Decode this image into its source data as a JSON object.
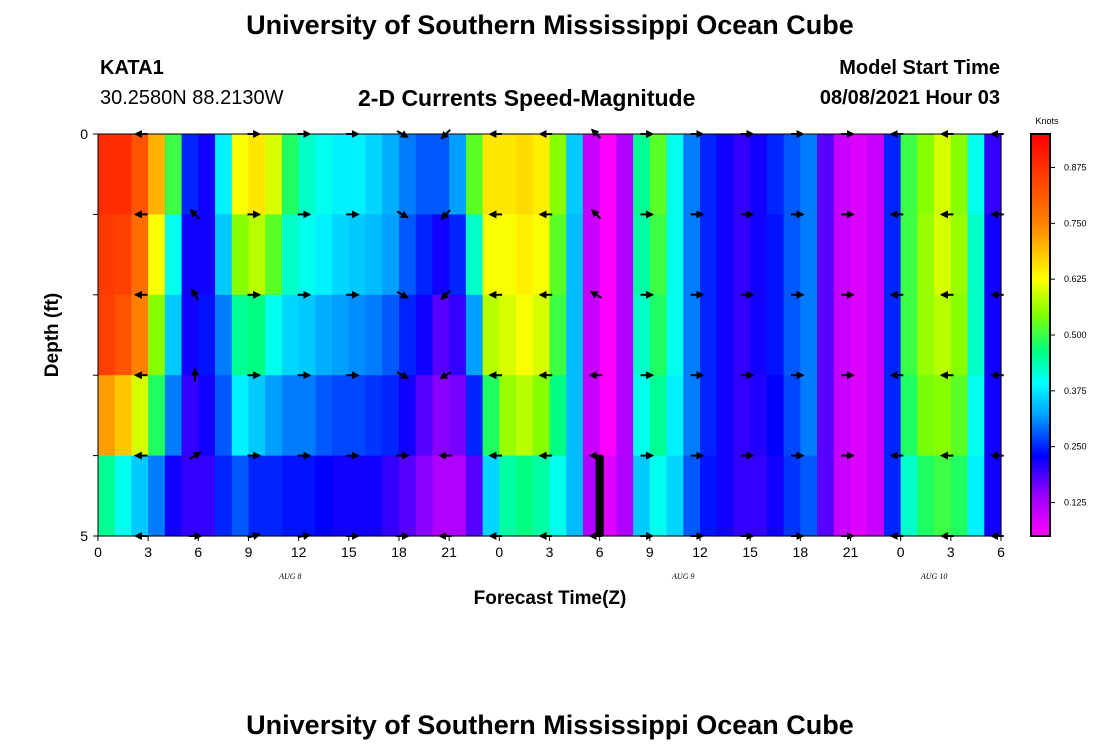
{
  "header": {
    "title_top": "University of Southern Mississippi Ocean Cube",
    "station": "KATA1",
    "coords": "30.2580N  88.2130W",
    "subtitle": "2-D Currents Speed-Magnitude",
    "model_label": "Model Start Time",
    "model_time": "08/08/2021 Hour 03"
  },
  "footer": {
    "title_bottom": "University of Southern Mississippi Ocean Cube"
  },
  "chart_data": {
    "type": "heatmap",
    "xlabel": "Forecast Time(Z)",
    "ylabel": "Depth (ft)",
    "x_tick_labels": [
      "0",
      "3",
      "6",
      "9",
      "12",
      "15",
      "18",
      "21",
      "0",
      "3",
      "6",
      "9",
      "12",
      "15",
      "18",
      "21",
      "0",
      "3",
      "6"
    ],
    "date_labels": [
      {
        "text": "AUG  8",
        "hour": 11.5
      },
      {
        "text": "AUG  9",
        "hour": 35
      },
      {
        "text": "AUG  10",
        "hour": 50
      }
    ],
    "y_tick_labels": [
      "0",
      "5"
    ],
    "ylim": [
      0,
      5
    ],
    "x_hours": [
      0,
      54
    ],
    "depth_levels": [
      0.5,
      1.5,
      2.5,
      3.5,
      4.5
    ],
    "colorbar": {
      "title": "Knots",
      "ticks": [
        "0.875",
        "0.750",
        "0.625",
        "0.500",
        "0.375",
        "0.250",
        "0.125"
      ],
      "range": [
        0.05,
        0.95
      ]
    },
    "current_marker_hour": 30,
    "columns": [
      {
        "h": 0,
        "v": [
          0.88,
          0.86,
          0.85,
          0.72,
          0.45
        ]
      },
      {
        "h": 1,
        "v": [
          0.88,
          0.85,
          0.82,
          0.68,
          0.4
        ]
      },
      {
        "h": 2,
        "v": [
          0.82,
          0.78,
          0.75,
          0.6,
          0.35
        ]
      },
      {
        "h": 3,
        "v": [
          0.7,
          0.62,
          0.55,
          0.48,
          0.3
        ]
      },
      {
        "h": 4,
        "v": [
          0.5,
          0.4,
          0.35,
          0.3,
          0.22
        ]
      },
      {
        "h": 5,
        "v": [
          0.25,
          0.22,
          0.22,
          0.2,
          0.2
        ]
      },
      {
        "h": 6,
        "v": [
          0.22,
          0.22,
          0.24,
          0.22,
          0.2
        ]
      },
      {
        "h": 7,
        "v": [
          0.38,
          0.35,
          0.3,
          0.28,
          0.25
        ]
      },
      {
        "h": 8,
        "v": [
          0.62,
          0.55,
          0.45,
          0.38,
          0.28
        ]
      },
      {
        "h": 9,
        "v": [
          0.65,
          0.58,
          0.46,
          0.35,
          0.25
        ]
      },
      {
        "h": 10,
        "v": [
          0.6,
          0.52,
          0.4,
          0.32,
          0.25
        ]
      },
      {
        "h": 11,
        "v": [
          0.48,
          0.42,
          0.36,
          0.3,
          0.24
        ]
      },
      {
        "h": 12,
        "v": [
          0.42,
          0.4,
          0.35,
          0.3,
          0.24
        ]
      },
      {
        "h": 13,
        "v": [
          0.4,
          0.38,
          0.33,
          0.28,
          0.23
        ]
      },
      {
        "h": 14,
        "v": [
          0.38,
          0.36,
          0.32,
          0.27,
          0.22
        ]
      },
      {
        "h": 15,
        "v": [
          0.38,
          0.35,
          0.31,
          0.27,
          0.22
        ]
      },
      {
        "h": 16,
        "v": [
          0.36,
          0.34,
          0.3,
          0.26,
          0.22
        ]
      },
      {
        "h": 17,
        "v": [
          0.33,
          0.32,
          0.28,
          0.25,
          0.2
        ]
      },
      {
        "h": 18,
        "v": [
          0.3,
          0.28,
          0.25,
          0.22,
          0.18
        ]
      },
      {
        "h": 19,
        "v": [
          0.28,
          0.25,
          0.22,
          0.18,
          0.15
        ]
      },
      {
        "h": 20,
        "v": [
          0.28,
          0.22,
          0.18,
          0.15,
          0.12
        ]
      },
      {
        "h": 21,
        "v": [
          0.32,
          0.25,
          0.2,
          0.16,
          0.12
        ]
      },
      {
        "h": 22,
        "v": [
          0.52,
          0.42,
          0.32,
          0.25,
          0.18
        ]
      },
      {
        "h": 23,
        "v": [
          0.65,
          0.62,
          0.58,
          0.48,
          0.36
        ]
      },
      {
        "h": 24,
        "v": [
          0.65,
          0.62,
          0.6,
          0.56,
          0.44
        ]
      },
      {
        "h": 25,
        "v": [
          0.66,
          0.64,
          0.62,
          0.58,
          0.46
        ]
      },
      {
        "h": 26,
        "v": [
          0.64,
          0.62,
          0.6,
          0.55,
          0.44
        ]
      },
      {
        "h": 27,
        "v": [
          0.55,
          0.52,
          0.5,
          0.46,
          0.4
        ]
      },
      {
        "h": 28,
        "v": [
          0.35,
          0.34,
          0.34,
          0.34,
          0.34
        ]
      },
      {
        "h": 29,
        "v": [
          0.1,
          0.1,
          0.1,
          0.1,
          0.12
        ]
      },
      {
        "h": 30,
        "v": [
          0.05,
          0.05,
          0.05,
          0.05,
          0.08
        ]
      },
      {
        "h": 31,
        "v": [
          0.12,
          0.12,
          0.12,
          0.12,
          0.12
        ]
      },
      {
        "h": 32,
        "v": [
          0.45,
          0.44,
          0.42,
          0.4,
          0.35
        ]
      },
      {
        "h": 33,
        "v": [
          0.52,
          0.5,
          0.48,
          0.45,
          0.4
        ]
      },
      {
        "h": 34,
        "v": [
          0.4,
          0.4,
          0.4,
          0.38,
          0.36
        ]
      },
      {
        "h": 35,
        "v": [
          0.3,
          0.3,
          0.3,
          0.3,
          0.28
        ]
      },
      {
        "h": 36,
        "v": [
          0.25,
          0.25,
          0.25,
          0.25,
          0.24
        ]
      },
      {
        "h": 37,
        "v": [
          0.22,
          0.22,
          0.22,
          0.22,
          0.22
        ]
      },
      {
        "h": 38,
        "v": [
          0.2,
          0.2,
          0.2,
          0.2,
          0.2
        ]
      },
      {
        "h": 39,
        "v": [
          0.22,
          0.22,
          0.22,
          0.21,
          0.2
        ]
      },
      {
        "h": 40,
        "v": [
          0.25,
          0.24,
          0.24,
          0.23,
          0.22
        ]
      },
      {
        "h": 41,
        "v": [
          0.28,
          0.28,
          0.28,
          0.27,
          0.26
        ]
      },
      {
        "h": 42,
        "v": [
          0.3,
          0.3,
          0.3,
          0.3,
          0.28
        ]
      },
      {
        "h": 43,
        "v": [
          0.18,
          0.18,
          0.18,
          0.18,
          0.18
        ]
      },
      {
        "h": 44,
        "v": [
          0.1,
          0.1,
          0.1,
          0.1,
          0.1
        ]
      },
      {
        "h": 45,
        "v": [
          0.08,
          0.08,
          0.08,
          0.08,
          0.08
        ]
      },
      {
        "h": 46,
        "v": [
          0.1,
          0.1,
          0.1,
          0.1,
          0.1
        ]
      },
      {
        "h": 47,
        "v": [
          0.25,
          0.25,
          0.25,
          0.25,
          0.25
        ]
      },
      {
        "h": 48,
        "v": [
          0.5,
          0.5,
          0.5,
          0.48,
          0.42
        ]
      },
      {
        "h": 49,
        "v": [
          0.55,
          0.56,
          0.56,
          0.54,
          0.48
        ]
      },
      {
        "h": 50,
        "v": [
          0.6,
          0.6,
          0.58,
          0.55,
          0.5
        ]
      },
      {
        "h": 51,
        "v": [
          0.55,
          0.56,
          0.55,
          0.52,
          0.48
        ]
      },
      {
        "h": 52,
        "v": [
          0.4,
          0.42,
          0.42,
          0.4,
          0.38
        ]
      },
      {
        "h": 53,
        "v": [
          0.2,
          0.22,
          0.22,
          0.22,
          0.22
        ]
      }
    ],
    "arrows": [
      {
        "h": 2.6,
        "d": [
          180,
          180,
          180,
          180,
          180,
          180
        ]
      },
      {
        "h": 5.8,
        "d": [
          null,
          135,
          120,
          90,
          30,
          0
        ]
      },
      {
        "h": 9.3,
        "d": [
          0,
          0,
          0,
          0,
          0,
          15
        ]
      },
      {
        "h": 12.3,
        "d": [
          0,
          0,
          0,
          0,
          0,
          10
        ]
      },
      {
        "h": 15.2,
        "d": [
          0,
          0,
          0,
          0,
          0,
          0
        ]
      },
      {
        "h": 18.2,
        "d": [
          330,
          330,
          330,
          330,
          0,
          0
        ]
      },
      {
        "h": 20.8,
        "d": [
          225,
          225,
          225,
          210,
          180,
          180
        ]
      },
      {
        "h": 23.8,
        "d": [
          180,
          180,
          180,
          180,
          180,
          180
        ]
      },
      {
        "h": 26.8,
        "d": [
          180,
          180,
          180,
          180,
          180,
          180
        ]
      },
      {
        "h": 29.8,
        "d": [
          135,
          135,
          150,
          180,
          180,
          180
        ]
      },
      {
        "h": 32.8,
        "d": [
          0,
          0,
          0,
          0,
          0,
          0
        ]
      },
      {
        "h": 35.8,
        "d": [
          0,
          0,
          0,
          0,
          0,
          0
        ]
      },
      {
        "h": 38.8,
        "d": [
          0,
          0,
          0,
          0,
          0,
          0
        ]
      },
      {
        "h": 41.8,
        "d": [
          0,
          0,
          0,
          0,
          0,
          0
        ]
      },
      {
        "h": 44.8,
        "d": [
          0,
          0,
          0,
          0,
          0,
          0
        ]
      },
      {
        "h": 47.8,
        "d": [
          180,
          180,
          180,
          180,
          180,
          180
        ]
      },
      {
        "h": 50.8,
        "d": [
          180,
          180,
          180,
          180,
          180,
          180
        ]
      },
      {
        "h": 53.8,
        "d": [
          180,
          180,
          180,
          180,
          180,
          180
        ]
      }
    ]
  }
}
